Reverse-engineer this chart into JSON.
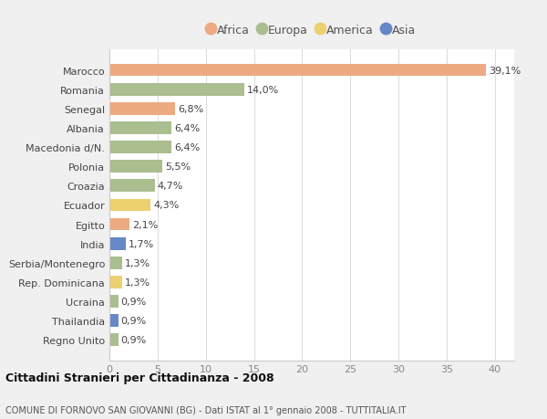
{
  "categories": [
    "Marocco",
    "Romania",
    "Senegal",
    "Albania",
    "Macedonia d/N.",
    "Polonia",
    "Croazia",
    "Ecuador",
    "Egitto",
    "India",
    "Serbia/Montenegro",
    "Rep. Dominicana",
    "Ucraina",
    "Thailandia",
    "Regno Unito"
  ],
  "values": [
    39.1,
    14.0,
    6.8,
    6.4,
    6.4,
    5.5,
    4.7,
    4.3,
    2.1,
    1.7,
    1.3,
    1.3,
    0.9,
    0.9,
    0.9
  ],
  "labels": [
    "39,1%",
    "14,0%",
    "6,8%",
    "6,4%",
    "6,4%",
    "5,5%",
    "4,7%",
    "4,3%",
    "2,1%",
    "1,7%",
    "1,3%",
    "1,3%",
    "0,9%",
    "0,9%",
    "0,9%"
  ],
  "continents": [
    "Africa",
    "Europa",
    "Africa",
    "Europa",
    "Europa",
    "Europa",
    "Europa",
    "America",
    "Africa",
    "Asia",
    "Europa",
    "America",
    "Europa",
    "Asia",
    "Europa"
  ],
  "colors": {
    "Africa": "#EDAA82",
    "Europa": "#ABBE90",
    "America": "#EDD070",
    "Asia": "#6688C8"
  },
  "legend_order": [
    "Africa",
    "Europa",
    "America",
    "Asia"
  ],
  "legend_colors": [
    "#EDAA82",
    "#ABBE90",
    "#EDD070",
    "#6688C8"
  ],
  "xlim": [
    0,
    42
  ],
  "xticks": [
    0,
    5,
    10,
    15,
    20,
    25,
    30,
    35,
    40
  ],
  "title": "Cittadini Stranieri per Cittadinanza - 2008",
  "subtitle": "COMUNE DI FORNOVO SAN GIOVANNI (BG) - Dati ISTAT al 1° gennaio 2008 - TUTTITALIA.IT",
  "background_color": "#f0f0f0",
  "plot_background": "#ffffff",
  "bar_height": 0.65,
  "label_fontsize": 8.0,
  "tick_fontsize": 8.0,
  "ytick_fontsize": 8.0
}
